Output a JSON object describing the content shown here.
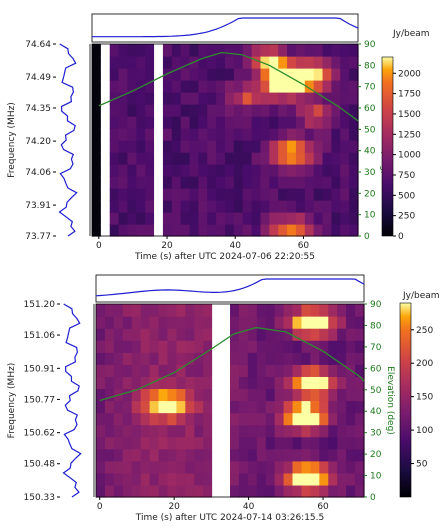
{
  "chart_data": [
    {
      "type": "heatmap",
      "xlabel": "Time (s) after UTC 2024-07-06 22:20:55",
      "ylabel": "Frequency (MHz)",
      "y2label": "Elevation (deg)",
      "colorbar_label": "Jy/beam",
      "xlim": [
        -2,
        76
      ],
      "ylim": [
        73.77,
        74.64
      ],
      "xticks": [
        0,
        20,
        40,
        60
      ],
      "yticks": [
        "73.77",
        "73.91",
        "74.06",
        "74.20",
        "74.35",
        "74.49",
        "74.64"
      ],
      "y2ticks": [
        0,
        10,
        20,
        30,
        40,
        50,
        60,
        70,
        80,
        90
      ],
      "y2lim": [
        0,
        90
      ],
      "colorbar_ticks": [
        0,
        250,
        500,
        750,
        1000,
        1250,
        1500,
        1750,
        2000
      ],
      "colorbar_range": [
        0,
        2200
      ],
      "gaps_seconds": [
        [
          0.5,
          3
        ],
        [
          17.5,
          20
        ]
      ],
      "elevation_curve": {
        "x": [
          0,
          10,
          20,
          30,
          36,
          42,
          50,
          60,
          70,
          76
        ],
        "y": [
          61,
          68,
          76,
          83,
          86,
          85,
          80,
          71,
          61,
          54
        ]
      },
      "bright_bursts": [
        {
          "x": 55,
          "y": 74.47,
          "peak": 2200
        },
        {
          "x": 62,
          "y": 74.5,
          "peak": 1600
        },
        {
          "x": 50,
          "y": 74.56,
          "peak": 1400
        },
        {
          "x": 57,
          "y": 74.15,
          "peak": 1600
        },
        {
          "x": 56,
          "y": 73.8,
          "peak": 1300
        },
        {
          "x": 44,
          "y": 74.4,
          "peak": 900
        },
        {
          "x": 64,
          "y": 74.32,
          "peak": 900
        }
      ]
    },
    {
      "type": "heatmap",
      "xlabel": "Time (s) after UTC 2024-07-14 03:26:15.5",
      "ylabel": "Frequency (MHz)",
      "y2label": "Elevation (deg)",
      "colorbar_label": "Jy/beam",
      "xlim": [
        -1,
        71
      ],
      "ylim": [
        150.33,
        151.2
      ],
      "xticks": [
        0,
        20,
        40,
        60
      ],
      "yticks": [
        "150.33",
        "150.48",
        "150.62",
        "150.77",
        "150.91",
        "151.06",
        "151.20"
      ],
      "y2ticks": [
        0,
        10,
        20,
        30,
        40,
        50,
        60,
        70,
        80,
        90
      ],
      "y2lim": [
        0,
        90
      ],
      "colorbar_ticks": [
        50,
        100,
        150,
        200,
        250
      ],
      "colorbar_range": [
        0,
        290
      ],
      "gaps_seconds": [
        [
          30,
          34
        ]
      ],
      "elevation_curve": {
        "x": [
          0,
          10,
          20,
          30,
          36,
          42,
          50,
          60,
          70,
          71
        ],
        "y": [
          45,
          50,
          58,
          69,
          76,
          79,
          77,
          68,
          56,
          54
        ]
      },
      "bright_bursts": [
        {
          "x": 56,
          "y": 150.42,
          "peak": 290
        },
        {
          "x": 55,
          "y": 150.7,
          "peak": 270
        },
        {
          "x": 57,
          "y": 150.85,
          "peak": 250
        },
        {
          "x": 57,
          "y": 151.12,
          "peak": 260
        },
        {
          "x": 18,
          "y": 150.75,
          "peak": 190
        }
      ]
    }
  ]
}
